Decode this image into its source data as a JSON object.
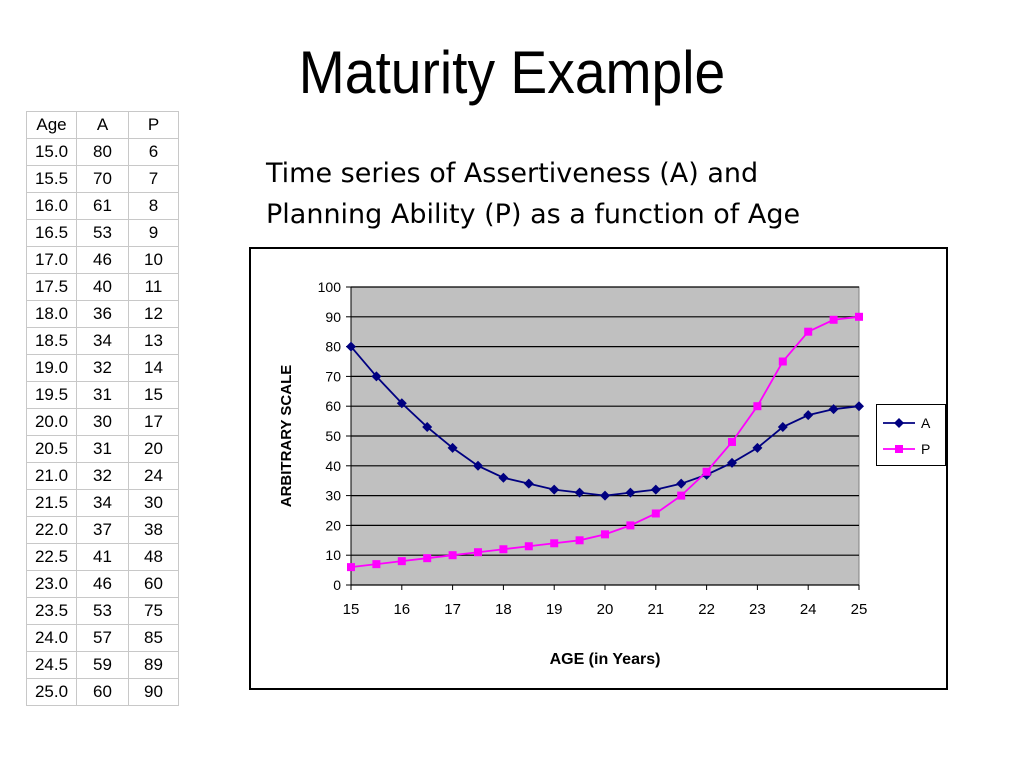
{
  "slide": {
    "title": "Maturity Example",
    "subtitle_line1": "Time series of Assertiveness (A) and",
    "subtitle_line2": "Planning Ability (P) as a function of Age"
  },
  "table": {
    "headers": [
      "Age",
      "A",
      "P"
    ],
    "rows": [
      [
        "15.0",
        "80",
        "6"
      ],
      [
        "15.5",
        "70",
        "7"
      ],
      [
        "16.0",
        "61",
        "8"
      ],
      [
        "16.5",
        "53",
        "9"
      ],
      [
        "17.0",
        "46",
        "10"
      ],
      [
        "17.5",
        "40",
        "11"
      ],
      [
        "18.0",
        "36",
        "12"
      ],
      [
        "18.5",
        "34",
        "13"
      ],
      [
        "19.0",
        "32",
        "14"
      ],
      [
        "19.5",
        "31",
        "15"
      ],
      [
        "20.0",
        "30",
        "17"
      ],
      [
        "20.5",
        "31",
        "20"
      ],
      [
        "21.0",
        "32",
        "24"
      ],
      [
        "21.5",
        "34",
        "30"
      ],
      [
        "22.0",
        "37",
        "38"
      ],
      [
        "22.5",
        "41",
        "48"
      ],
      [
        "23.0",
        "46",
        "60"
      ],
      [
        "23.5",
        "53",
        "75"
      ],
      [
        "24.0",
        "57",
        "85"
      ],
      [
        "24.5",
        "59",
        "89"
      ],
      [
        "25.0",
        "60",
        "90"
      ]
    ]
  },
  "chart_data": {
    "type": "line",
    "title": "",
    "xlabel": "AGE (in Years)",
    "ylabel": "ARBITRARY SCALE",
    "x": [
      15,
      15.5,
      16,
      16.5,
      17,
      17.5,
      18,
      18.5,
      19,
      19.5,
      20,
      20.5,
      21,
      21.5,
      22,
      22.5,
      23,
      23.5,
      24,
      24.5,
      25
    ],
    "xlim": [
      15,
      25
    ],
    "ylim": [
      0,
      100
    ],
    "xticks": [
      "15",
      "16",
      "17",
      "18",
      "19",
      "20",
      "21",
      "22",
      "23",
      "24",
      "25"
    ],
    "yticks": [
      "0",
      "10",
      "20",
      "30",
      "40",
      "50",
      "60",
      "70",
      "80",
      "90",
      "100"
    ],
    "grid": "horizontal",
    "plot_background": "#c0c0c0",
    "legend": "right",
    "series": [
      {
        "name": "A",
        "color": "#000080",
        "marker": "diamond",
        "values": [
          80,
          70,
          61,
          53,
          46,
          40,
          36,
          34,
          32,
          31,
          30,
          31,
          32,
          34,
          37,
          41,
          46,
          53,
          57,
          59,
          60
        ]
      },
      {
        "name": "P",
        "color": "#ff00ff",
        "marker": "square",
        "values": [
          6,
          7,
          8,
          9,
          10,
          11,
          12,
          13,
          14,
          15,
          17,
          20,
          24,
          30,
          38,
          48,
          60,
          75,
          85,
          89,
          90
        ]
      }
    ]
  }
}
